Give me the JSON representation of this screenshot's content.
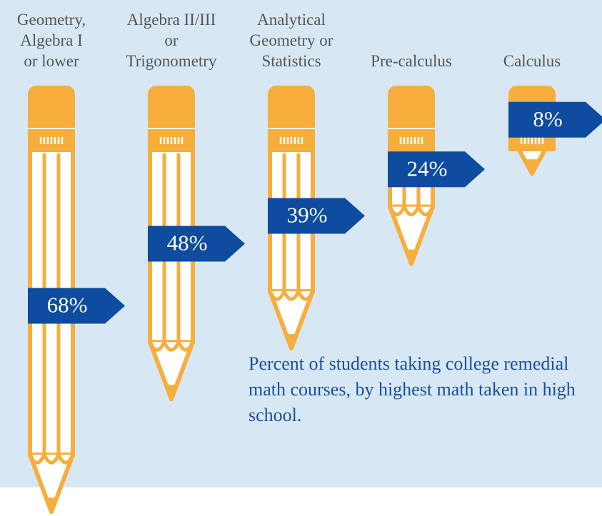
{
  "chart_data": {
    "type": "bar",
    "categories": [
      "Geometry,\nAlgebra I\nor lower",
      "Algebra II/III\nor\nTrigonometry",
      "Analytical\nGeometry or\nStatistics",
      "Pre-calculus",
      "Calculus"
    ],
    "values": [
      68,
      48,
      39,
      24,
      8
    ],
    "value_labels": [
      "68%",
      "48%",
      "39%",
      "24%",
      "8%"
    ],
    "note": "Percent of students taking college remedial math courses, by highest math taken in high school.",
    "color": "#f7ae3c",
    "label_color": "#0d4c9e"
  }
}
